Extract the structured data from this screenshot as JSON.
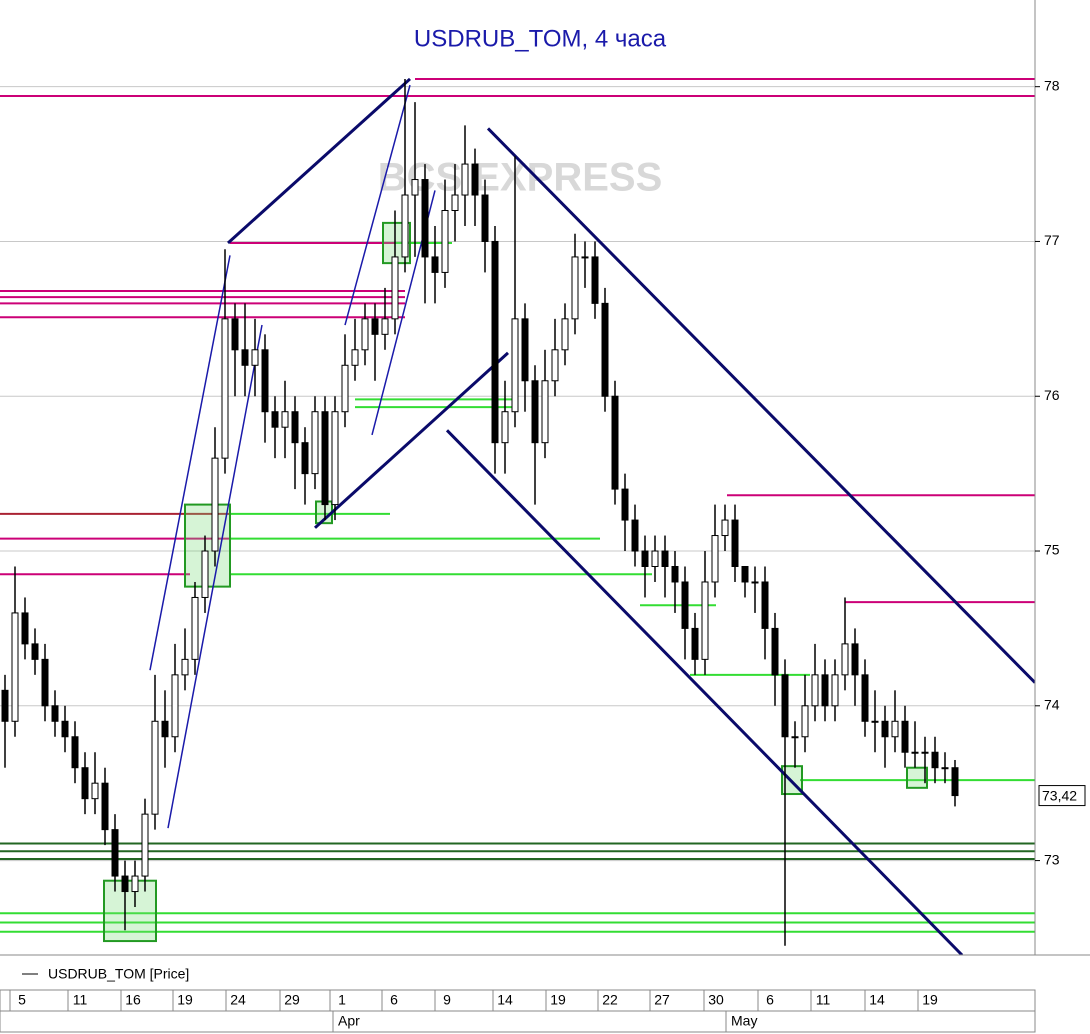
{
  "chart_data": {
    "type": "candlestick",
    "title": "USDRUB_TOM, 4 часа",
    "watermark": "BCS EXPRESS",
    "series": [
      {
        "name": "USDRUB_TOM [Price]",
        "color": "#000000",
        "open": [
          74.1,
          73.9,
          74.6,
          74.4,
          74.3,
          74.0,
          73.9,
          73.8,
          73.6,
          73.4,
          73.5,
          73.2,
          72.9,
          72.8,
          72.9,
          73.3,
          73.9,
          73.8,
          74.2,
          74.3,
          74.7,
          75.0,
          75.6,
          76.5,
          76.3,
          76.2,
          76.3,
          75.9,
          75.8,
          75.9,
          75.7,
          75.5,
          75.9,
          75.3,
          75.9,
          76.2,
          76.3,
          76.5,
          76.4,
          76.5,
          76.9,
          77.3,
          77.4,
          76.9,
          76.8,
          77.2,
          77.3,
          77.5,
          77.3,
          77.0,
          75.7,
          75.9,
          76.5,
          76.1,
          75.7,
          76.1,
          76.3,
          76.5,
          76.9,
          76.9,
          76.6,
          76.0,
          75.4,
          75.2,
          75.0,
          74.9,
          75.0,
          74.9,
          74.8,
          74.5,
          74.3,
          74.8,
          75.1,
          75.2,
          74.9,
          74.8,
          74.8,
          74.5,
          74.2,
          73.8,
          73.8,
          74.0,
          74.2,
          74.0,
          74.2,
          74.4,
          74.2,
          73.9,
          73.9,
          73.8,
          73.9,
          73.7,
          73.7,
          73.7,
          73.6,
          73.6
        ],
        "high": [
          74.2,
          74.9,
          74.7,
          74.5,
          74.4,
          74.1,
          74.0,
          73.9,
          73.7,
          73.7,
          73.6,
          73.3,
          73.0,
          73.0,
          73.4,
          74.2,
          74.1,
          74.4,
          74.5,
          74.8,
          75.1,
          75.8,
          76.95,
          76.6,
          76.6,
          76.5,
          76.4,
          76.0,
          76.1,
          76.0,
          75.8,
          76.0,
          76.0,
          76.0,
          76.4,
          76.5,
          76.6,
          76.6,
          76.7,
          77.2,
          78.05,
          77.9,
          77.5,
          77.1,
          77.4,
          77.5,
          77.75,
          77.6,
          77.4,
          77.1,
          76.1,
          77.55,
          76.6,
          76.2,
          76.3,
          76.5,
          76.6,
          77.05,
          77.0,
          77.0,
          76.7,
          76.1,
          75.5,
          75.3,
          75.1,
          75.1,
          75.1,
          75.0,
          74.9,
          74.6,
          75.0,
          75.3,
          75.3,
          75.3,
          74.9,
          74.9,
          74.9,
          74.6,
          74.3,
          73.9,
          74.2,
          74.4,
          74.3,
          74.3,
          74.7,
          74.5,
          74.3,
          74.1,
          74.0,
          74.1,
          74.0,
          73.9,
          73.8,
          73.8,
          73.7,
          73.65
        ],
        "low": [
          73.6,
          73.8,
          74.3,
          74.2,
          73.9,
          73.8,
          73.7,
          73.5,
          73.3,
          73.3,
          73.1,
          72.8,
          72.55,
          72.7,
          72.8,
          73.2,
          73.6,
          73.7,
          74.1,
          74.2,
          74.6,
          74.9,
          75.5,
          76.0,
          76.0,
          76.0,
          75.7,
          75.6,
          75.6,
          75.4,
          75.3,
          75.4,
          75.2,
          75.2,
          75.8,
          76.1,
          76.2,
          76.1,
          76.3,
          76.4,
          76.8,
          76.9,
          76.6,
          76.6,
          76.7,
          77.0,
          77.1,
          77.1,
          76.8,
          75.5,
          75.5,
          75.8,
          75.9,
          75.3,
          75.6,
          76.0,
          76.2,
          76.4,
          76.7,
          76.5,
          75.9,
          75.3,
          75.0,
          74.9,
          74.7,
          74.8,
          74.7,
          74.6,
          74.3,
          74.2,
          74.2,
          74.7,
          75.0,
          74.8,
          74.7,
          74.6,
          74.3,
          74.0,
          72.45,
          73.6,
          73.7,
          73.9,
          73.9,
          73.9,
          74.1,
          74.0,
          73.8,
          73.7,
          73.6,
          73.7,
          73.6,
          73.6,
          73.5,
          73.5,
          73.5,
          73.35
        ],
        "close": [
          73.9,
          74.6,
          74.4,
          74.3,
          74.0,
          73.9,
          73.8,
          73.6,
          73.4,
          73.5,
          73.2,
          72.9,
          72.8,
          72.9,
          73.3,
          73.9,
          73.8,
          74.2,
          74.3,
          74.7,
          75.0,
          75.6,
          76.5,
          76.3,
          76.2,
          76.3,
          75.9,
          75.8,
          75.9,
          75.7,
          75.5,
          75.9,
          75.3,
          75.9,
          76.2,
          76.3,
          76.5,
          76.4,
          76.5,
          76.9,
          77.3,
          77.4,
          76.9,
          76.8,
          77.2,
          77.3,
          77.5,
          77.3,
          77.0,
          75.7,
          75.9,
          76.5,
          76.1,
          75.7,
          76.1,
          76.3,
          76.5,
          76.9,
          76.9,
          76.6,
          76.0,
          75.4,
          75.2,
          75.0,
          74.9,
          75.0,
          74.9,
          74.8,
          74.5,
          74.3,
          74.8,
          75.1,
          75.2,
          74.9,
          74.8,
          74.8,
          74.5,
          74.2,
          73.8,
          73.8,
          74.0,
          74.2,
          74.0,
          74.2,
          74.4,
          74.2,
          73.9,
          73.9,
          73.8,
          73.9,
          73.7,
          73.7,
          73.7,
          73.6,
          73.6,
          73.42
        ]
      }
    ],
    "xlim": [
      -0.5,
      103
    ],
    "ylim": [
      72.39,
      78.56
    ],
    "yticks": [
      73,
      74,
      75,
      76,
      77,
      78
    ],
    "grid": true,
    "last_price": {
      "value": 73.42,
      "label": "73,42"
    },
    "xticks": [
      {
        "value": 1.7,
        "label": "5"
      },
      {
        "value": 7.5,
        "label": "11"
      },
      {
        "value": 12.8,
        "label": "16"
      },
      {
        "value": 18,
        "label": "19"
      },
      {
        "value": 23.3,
        "label": "24"
      },
      {
        "value": 28.7,
        "label": "29"
      },
      {
        "value": 33.7,
        "label": "1"
      },
      {
        "value": 38.9,
        "label": "6"
      },
      {
        "value": 44.2,
        "label": "9"
      },
      {
        "value": 50,
        "label": "14"
      },
      {
        "value": 55.3,
        "label": "19"
      },
      {
        "value": 60.5,
        "label": "22"
      },
      {
        "value": 65.7,
        "label": "27"
      },
      {
        "value": 71.1,
        "label": "30"
      },
      {
        "value": 76.5,
        "label": "6"
      },
      {
        "value": 81.8,
        "label": "11"
      },
      {
        "value": 87.2,
        "label": "14"
      },
      {
        "value": 92.5,
        "label": "19"
      }
    ],
    "months": [
      {
        "value": 32.8,
        "label": "Apr"
      },
      {
        "value": 72.1,
        "label": "May"
      }
    ],
    "levels": [
      {
        "y": 78.05,
        "x0": 41,
        "x1": 103,
        "color": "#cc0077"
      },
      {
        "y": 77.94,
        "x0": -0.5,
        "x1": 103,
        "color": "#cc0077"
      },
      {
        "y": 76.99,
        "x0": 22.5,
        "x1": 40,
        "color": "#cc0077"
      },
      {
        "y": 76.68,
        "x0": -0.5,
        "x1": 40,
        "color": "#cc0077"
      },
      {
        "y": 76.64,
        "x0": -0.5,
        "x1": 40,
        "color": "#cc0077"
      },
      {
        "y": 76.6,
        "x0": -0.5,
        "x1": 40,
        "color": "#cc0077"
      },
      {
        "y": 76.51,
        "x0": -0.5,
        "x1": 40,
        "color": "#cc0077"
      },
      {
        "y": 75.36,
        "x0": 72.2,
        "x1": 103,
        "color": "#cc0077"
      },
      {
        "y": 75.24,
        "x0": -0.5,
        "x1": 22.5,
        "color": "#aa2233"
      },
      {
        "y": 75.08,
        "x0": -0.5,
        "x1": 22.5,
        "color": "#cc0077"
      },
      {
        "y": 74.85,
        "x0": -0.5,
        "x1": 18.5,
        "color": "#cc0077"
      },
      {
        "y": 74.67,
        "x0": 84,
        "x1": 103,
        "color": "#cc0077"
      },
      {
        "y": 76.99,
        "x0": 39,
        "x1": 44.7,
        "color": "#33dd33"
      },
      {
        "y": 75.98,
        "x0": 35,
        "x1": 51.3,
        "color": "#33dd33"
      },
      {
        "y": 75.93,
        "x0": 35,
        "x1": 51.3,
        "color": "#33dd33"
      },
      {
        "y": 75.24,
        "x0": 22.5,
        "x1": 38.5,
        "color": "#33dd33"
      },
      {
        "y": 75.08,
        "x0": 22.5,
        "x1": 59.5,
        "color": "#33dd33"
      },
      {
        "y": 74.85,
        "x0": 22.5,
        "x1": 64.7,
        "color": "#33dd33"
      },
      {
        "y": 74.65,
        "x0": 63.5,
        "x1": 71.1,
        "color": "#33dd33"
      },
      {
        "y": 74.2,
        "x0": 68.5,
        "x1": 80.5,
        "color": "#33dd33"
      },
      {
        "y": 73.52,
        "x0": 79.5,
        "x1": 103,
        "color": "#33dd33"
      },
      {
        "y": 73.11,
        "x0": -0.5,
        "x1": 103,
        "color": "#226622"
      },
      {
        "y": 73.06,
        "x0": -0.5,
        "x1": 103,
        "color": "#226622"
      },
      {
        "y": 73.01,
        "x0": -0.5,
        "x1": 103,
        "color": "#226622"
      },
      {
        "y": 72.66,
        "x0": -0.5,
        "x1": 103,
        "color": "#33dd33"
      },
      {
        "y": 72.6,
        "x0": -0.5,
        "x1": 103,
        "color": "#33dd33"
      },
      {
        "y": 72.54,
        "x0": -0.5,
        "x1": 103,
        "color": "#33dd33"
      }
    ],
    "trendlines": [
      {
        "x0": 22.3,
        "y0": 76.99,
        "x1": 40.5,
        "y1": 78.05,
        "color": "#0a0a6a",
        "width": 3
      },
      {
        "x0": 31,
        "y0": 75.15,
        "x1": 50.3,
        "y1": 76.28,
        "color": "#0a0a6a",
        "width": 3
      },
      {
        "x0": 48.3,
        "y0": 77.73,
        "x1": 103,
        "y1": 74.15,
        "color": "#0a0a6a",
        "width": 3
      },
      {
        "x0": 44.2,
        "y0": 75.78,
        "x1": 95.7,
        "y1": 72.39,
        "color": "#0a0a6a",
        "width": 3
      },
      {
        "x0": 14.5,
        "y0": 74.23,
        "x1": 22.5,
        "y1": 76.91,
        "color": "#1a1aaa",
        "width": 1.5
      },
      {
        "x0": 16.3,
        "y0": 73.21,
        "x1": 25.7,
        "y1": 76.46,
        "color": "#1a1aaa",
        "width": 1.5
      },
      {
        "x0": 34,
        "y0": 76.46,
        "x1": 40.5,
        "y1": 78.01,
        "color": "#1a1aaa",
        "width": 1.5
      },
      {
        "x0": 36.7,
        "y0": 75.75,
        "x1": 43,
        "y1": 77.33,
        "color": "#1a1aaa",
        "width": 1.5
      }
    ],
    "boxes": [
      {
        "x0": 9.9,
        "x1": 15.1,
        "y0": 72.87,
        "y1": 72.48
      },
      {
        "x0": 18,
        "x1": 22.5,
        "y0": 75.3,
        "y1": 74.77
      },
      {
        "x0": 37.8,
        "x1": 40.5,
        "y0": 77.12,
        "y1": 76.86
      },
      {
        "x0": 31.1,
        "x1": 32.7,
        "y0": 75.32,
        "y1": 75.18
      },
      {
        "x0": 77.7,
        "x1": 79.7,
        "y0": 73.61,
        "y1": 73.43
      },
      {
        "x0": 90.2,
        "x1": 92.2,
        "y0": 73.6,
        "y1": 73.47
      }
    ]
  }
}
